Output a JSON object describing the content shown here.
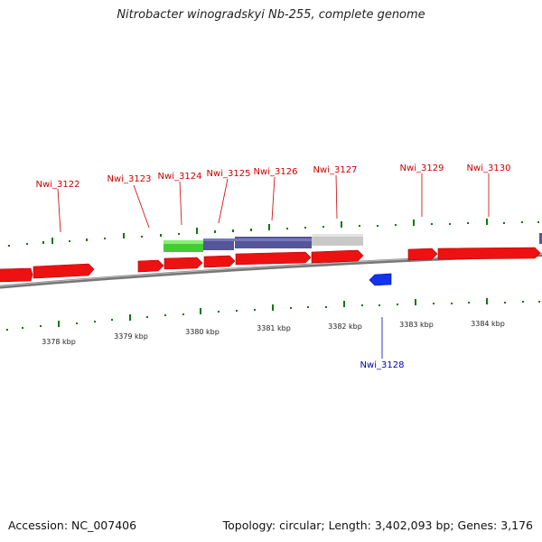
{
  "title": "Nitrobacter winogradskyi Nb-255, complete genome",
  "footer": {
    "accession": "Accession: NC_007406",
    "topology": "Topology: circular; Length: 3,402,093 bp; Genes: 3,176"
  },
  "colors": {
    "forward_gene": "#ee1111",
    "reverse_gene": "#1133ee",
    "forward_label": "#cc0000",
    "reverse_label": "#0000bb",
    "backbone": "#888888",
    "tick": "#117711",
    "feature_green": "#44cc33",
    "feature_purple": "#555599",
    "feature_grey": "#c8c8c8"
  },
  "genes_forward": [
    {
      "name": "Nwi_3122"
    },
    {
      "name": "Nwi_3123"
    },
    {
      "name": "Nwi_3124"
    },
    {
      "name": "Nwi_3125"
    },
    {
      "name": "Nwi_3126"
    },
    {
      "name": "Nwi_3127"
    },
    {
      "name": "Nwi_3129"
    },
    {
      "name": "Nwi_3130"
    }
  ],
  "genes_reverse": [
    {
      "name": "Nwi_3128"
    }
  ],
  "kbp_labels": [
    "3378 kbp",
    "3379 kbp",
    "3380 kbp",
    "3381 kbp",
    "3382 kbp",
    "3383 kbp",
    "3384 kbp"
  ]
}
